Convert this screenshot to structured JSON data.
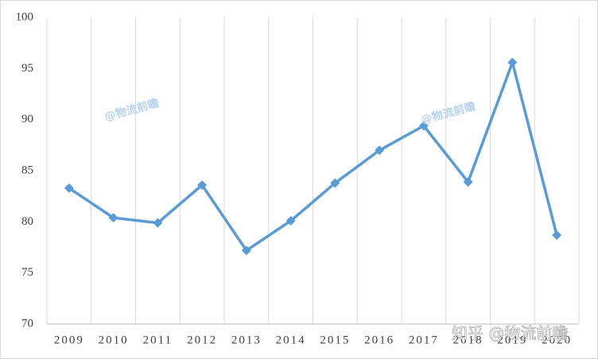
{
  "chart_data": {
    "type": "line",
    "categories": [
      "2009",
      "2010",
      "2011",
      "2012",
      "2013",
      "2014",
      "2015",
      "2016",
      "2017",
      "2018",
      "2019",
      "2020"
    ],
    "series": [
      {
        "name": null,
        "color": "#5b9bd5",
        "values": [
          83.3,
          80.4,
          79.9,
          83.6,
          77.2,
          80.1,
          83.8,
          87.0,
          89.4,
          83.9,
          95.6,
          78.7
        ]
      }
    ],
    "ylim": [
      70,
      100
    ],
    "yticks": [
      70,
      75,
      80,
      85,
      90,
      95,
      100
    ],
    "grid": "vertical",
    "annotations": [
      "@物流前瞻",
      "@物流前瞻",
      "知乎 @物流前瞻"
    ]
  }
}
